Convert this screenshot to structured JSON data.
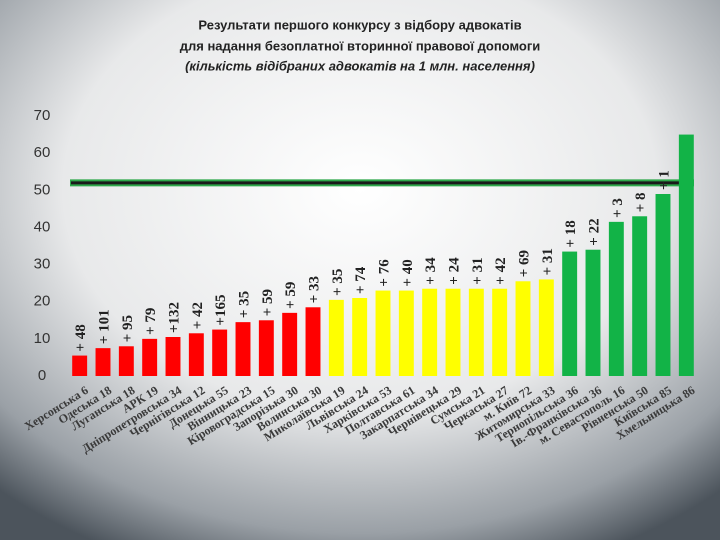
{
  "chart_data": {
    "type": "bar",
    "title": [
      "Результати першого конкурсу з відбору адвокатів",
      "для надання безоплатної вторинної правової допомоги",
      "(кількість відібраних адвокатів на 1 млн. населення)"
    ],
    "categories": [
      "Херсонська 6",
      "Одеська 18",
      "Луганська 18",
      "АРК 19",
      "Дніпропетровська 34",
      "Чернігівська 12",
      "Донецька 55",
      "Вінницька 23",
      "Кіровоградська 15",
      "Запорізька 30",
      "Волинська 30",
      "Миколаївська 19",
      "Львівська 24",
      "Харківська 53",
      "Полтавська 61",
      "Закарпатська 34",
      "Чернівецька 29",
      "Сумська 21",
      "Черкаська 27",
      "м. Київ 72",
      "Житомирська 33",
      "Тернопільська 36",
      "Ів.-Франківська 36",
      "м. Севастополь 16",
      "Рівненська 50",
      "Київська 85",
      "Хмельницька 86"
    ],
    "values": [
      5.5,
      7.5,
      8,
      10,
      10.5,
      11.5,
      12.5,
      14.5,
      15,
      17,
      18.5,
      20.5,
      21,
      23,
      23,
      23.5,
      23.5,
      23.5,
      23.5,
      25.5,
      26,
      33.5,
      34,
      41.5,
      43,
      49,
      65
    ],
    "colors": [
      "#ff0000",
      "#ff0000",
      "#ff0000",
      "#ff0000",
      "#ff0000",
      "#ff0000",
      "#ff0000",
      "#ff0000",
      "#ff0000",
      "#ff0000",
      "#ff0000",
      "#ffff00",
      "#ffff00",
      "#ffff00",
      "#ffff00",
      "#ffff00",
      "#ffff00",
      "#ffff00",
      "#ffff00",
      "#ffff00",
      "#ffff00",
      "#12b347",
      "#12b347",
      "#12b347",
      "#12b347",
      "#12b347",
      "#12b347"
    ],
    "annotations": [
      "+ 48",
      "+ 101",
      "+ 95",
      "+ 79",
      "+132",
      "+ 42",
      "+165",
      "+ 35",
      "+ 59",
      "+ 59",
      "+ 33",
      "+ 35",
      "+ 74",
      "+ 76",
      "+ 40",
      "+ 34",
      "+ 24",
      "+ 31",
      "+ 42",
      "+ 69",
      "+ 31",
      "+ 18",
      "+ 22",
      "+ 3",
      "+ 8",
      "+ 1",
      null
    ],
    "reference_line": 52,
    "ylim": [
      0,
      70
    ],
    "yticks": [
      0,
      10,
      20,
      30,
      40,
      50,
      60,
      70
    ]
  }
}
